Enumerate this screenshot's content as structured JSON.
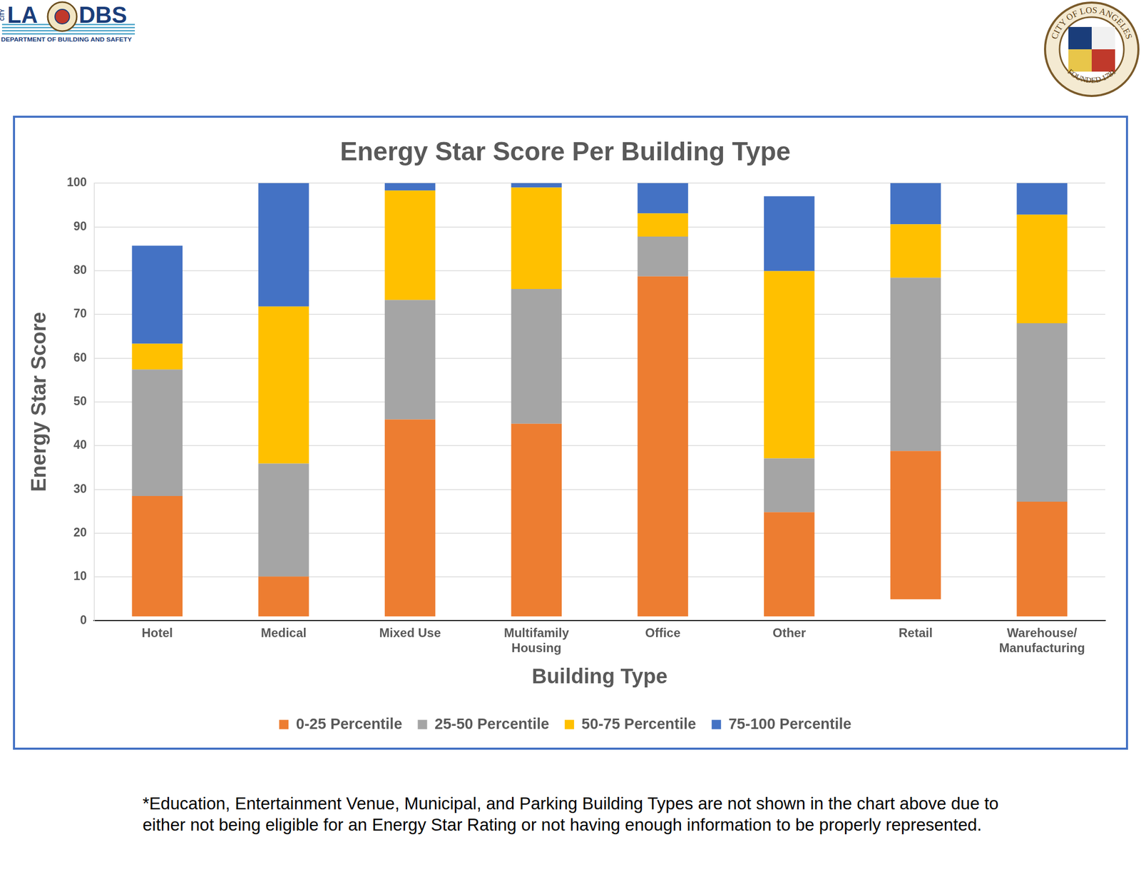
{
  "header": {
    "logo_city": "CITY",
    "logo_left": "LA",
    "logo_right": "DBS",
    "department": "DEPARTMENT OF BUILDING AND SAFETY",
    "seal_top": "CITY OF LOS ANGELES",
    "seal_bottom": "FOUNDED 1781"
  },
  "chart_data": {
    "type": "bar",
    "title": "Energy Star Score Per Building Type",
    "x_label": "Building Type",
    "y_label": "Energy Star Score",
    "categories": [
      "Hotel",
      "Medical",
      "Mixed Use",
      [
        "Multifamily",
        "Housing"
      ],
      "Office",
      "Other",
      "Retail",
      [
        "Warehouse/",
        "Manufacturing"
      ]
    ],
    "series": [
      {
        "name": "0-25 Percentile",
        "color": "#ed7d31",
        "values": [
          [
            1,
            28.5
          ],
          [
            1,
            10.1
          ],
          [
            1,
            46
          ],
          [
            1,
            45
          ],
          [
            1,
            78.7
          ],
          [
            1,
            24.8
          ],
          [
            4.9,
            38.8
          ],
          [
            1,
            27.2
          ]
        ]
      },
      {
        "name": "25-50 Percentile",
        "color": "#a5a5a5",
        "values": [
          [
            28.5,
            57.4
          ],
          [
            10.1,
            35.9
          ],
          [
            46,
            73.3
          ],
          [
            45,
            75.8
          ],
          [
            78.7,
            87.8
          ],
          [
            24.8,
            37.1
          ],
          [
            38.8,
            78.4
          ],
          [
            27.2,
            68
          ]
        ]
      },
      {
        "name": "50-75 Percentile",
        "color": "#ffc000",
        "values": [
          [
            57.4,
            63.3
          ],
          [
            35.9,
            71.8
          ],
          [
            73.3,
            98.3
          ],
          [
            75.8,
            99
          ],
          [
            87.8,
            93.1
          ],
          [
            37.1,
            79.9
          ],
          [
            78.4,
            90.6
          ],
          [
            68,
            92.8
          ]
        ]
      },
      {
        "name": "75-100 Percentile",
        "color": "#4472c4",
        "values": [
          [
            63.3,
            85.7
          ],
          [
            71.8,
            100
          ],
          [
            98.3,
            100
          ],
          [
            99,
            100
          ],
          [
            93.1,
            100
          ],
          [
            79.9,
            97
          ],
          [
            90.6,
            100
          ],
          [
            92.8,
            100
          ]
        ]
      }
    ],
    "ylim": [
      0,
      100
    ],
    "yticks": [
      0,
      10,
      20,
      30,
      40,
      50,
      60,
      70,
      80,
      90,
      100
    ],
    "grid": true,
    "legend": "bottom"
  },
  "footnote": "*Education, Entertainment Venue, Municipal, and Parking Building Types are not shown in the chart above due to either not being eligible for an Energy Star Rating or not having enough information to be properly represented."
}
